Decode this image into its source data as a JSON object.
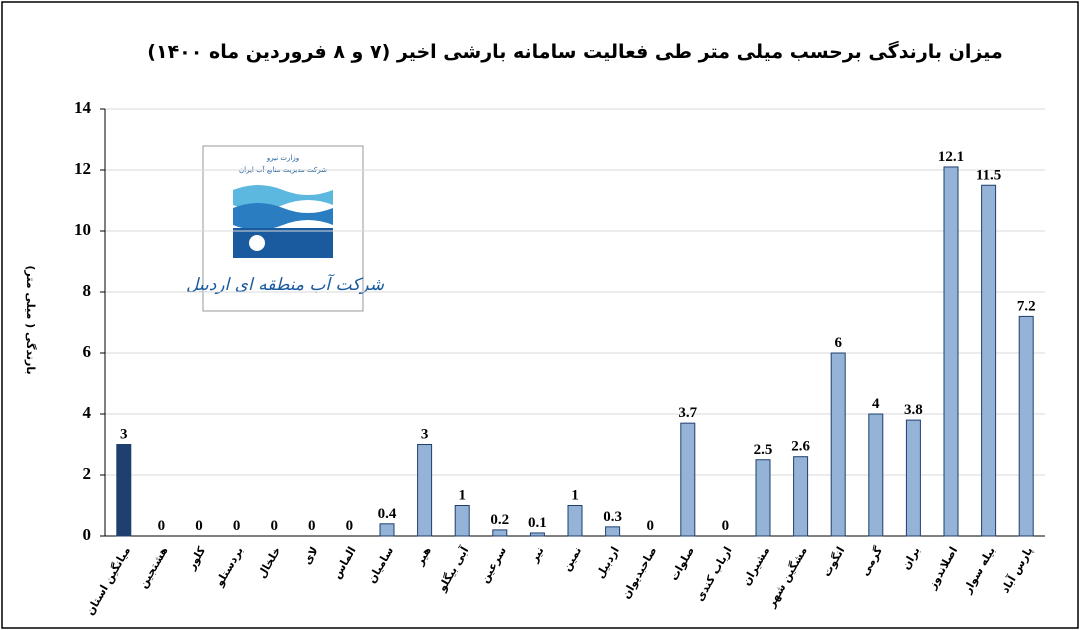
{
  "chart_data": {
    "type": "bar",
    "title": "میزان بارندگی برحسب میلی متر طی فعالیت سامانه بارشی اخیر (۷ و ۸ فروردین ماه ۱۴۰۰)",
    "y_label": "بارندگی ( میلی متر)",
    "categories": [
      "میانگین استان",
      "هشتجین",
      "کلور",
      "بردستلو",
      "خلخال",
      "لای",
      "الماس",
      "سامیان",
      "هیر",
      "آبی بیگلو",
      "سرعین",
      "نیر",
      "نمین",
      "اردبیل",
      "صاحبدیوان",
      "صلوات",
      "ارباب کندی",
      "مشیران",
      "مشگین شهر",
      "انگوت",
      "گرمی",
      "بران",
      "اصلاندوز",
      "بیله سوار",
      "پارس آباد"
    ],
    "values": [
      3,
      0,
      0,
      0,
      0,
      0,
      0,
      0.4,
      3,
      1,
      0.2,
      0.1,
      1,
      0.3,
      0,
      3.7,
      0,
      2.5,
      2.6,
      6,
      4,
      3.8,
      12.1,
      11.5,
      7.2
    ],
    "colors": [
      "#1f3f6e",
      "#95b3d7",
      "#95b3d7",
      "#95b3d7",
      "#95b3d7",
      "#95b3d7",
      "#95b3d7",
      "#95b3d7",
      "#95b3d7",
      "#95b3d7",
      "#95b3d7",
      "#95b3d7",
      "#95b3d7",
      "#95b3d7",
      "#95b3d7",
      "#95b3d7",
      "#95b3d7",
      "#95b3d7",
      "#95b3d7",
      "#95b3d7",
      "#95b3d7",
      "#95b3d7",
      "#95b3d7",
      "#95b3d7",
      "#95b3d7"
    ],
    "ylim": [
      0,
      14
    ],
    "yticks": [
      0,
      2,
      4,
      6,
      8,
      10,
      12,
      14
    ],
    "grid": true
  },
  "logo": {
    "ministry": "وزارت نیرو",
    "parent": "شرکت مدیریت منابع آب ایران",
    "name": "شرکت آب منطقه ای اردبیل"
  }
}
